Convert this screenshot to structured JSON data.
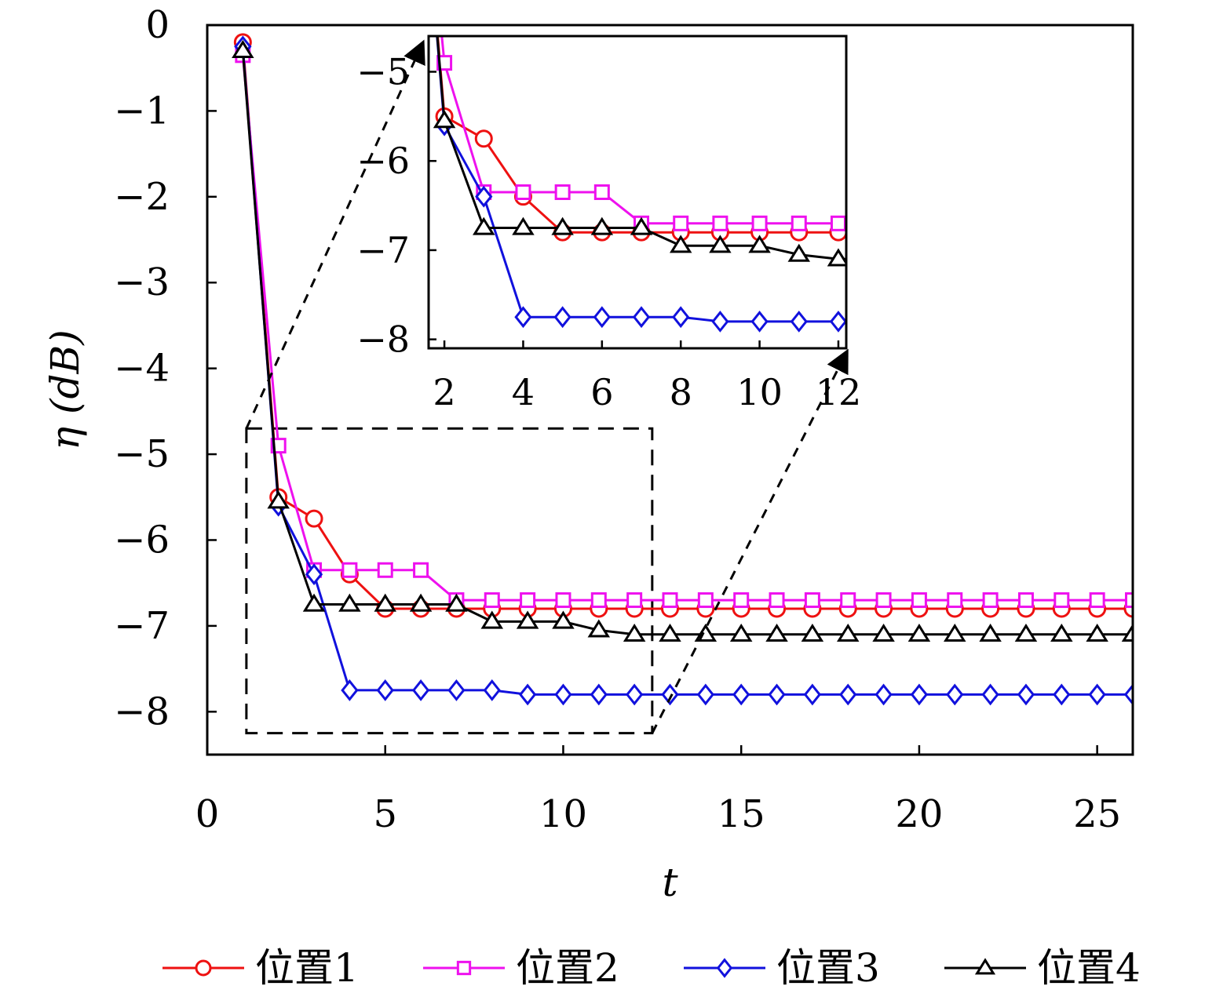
{
  "chart_data": {
    "type": "line",
    "xlabel": "t",
    "ylabel": "η (dB)",
    "xlim": [
      0,
      26
    ],
    "ylim": [
      -8.5,
      0
    ],
    "xticks": [
      0,
      5,
      10,
      15,
      20,
      25
    ],
    "yticks": [
      0,
      -1,
      -2,
      -3,
      -4,
      -5,
      -6,
      -7,
      -8
    ],
    "grid": false,
    "legend_position": "bottom",
    "series": [
      {
        "name": "位置1",
        "color": "#ee1111",
        "marker": "circle",
        "x": [
          1,
          2,
          3,
          4,
          5,
          6,
          7,
          8,
          9,
          10,
          11,
          12,
          13,
          14,
          15,
          16,
          17,
          18,
          19,
          20,
          21,
          22,
          23,
          24,
          25,
          26
        ],
        "y": [
          -0.2,
          -5.5,
          -5.75,
          -6.4,
          -6.8,
          -6.8,
          -6.8,
          -6.8,
          -6.8,
          -6.8,
          -6.8,
          -6.8,
          -6.8,
          -6.8,
          -6.8,
          -6.8,
          -6.8,
          -6.8,
          -6.8,
          -6.8,
          -6.8,
          -6.8,
          -6.8,
          -6.8,
          -6.8,
          -6.8
        ]
      },
      {
        "name": "位置2",
        "color": "#ee11ee",
        "marker": "square",
        "x": [
          1,
          2,
          3,
          4,
          5,
          6,
          7,
          8,
          9,
          10,
          11,
          12,
          13,
          14,
          15,
          16,
          17,
          18,
          19,
          20,
          21,
          22,
          23,
          24,
          25,
          26
        ],
        "y": [
          -0.35,
          -4.9,
          -6.35,
          -6.35,
          -6.35,
          -6.35,
          -6.7,
          -6.7,
          -6.7,
          -6.7,
          -6.7,
          -6.7,
          -6.7,
          -6.7,
          -6.7,
          -6.7,
          -6.7,
          -6.7,
          -6.7,
          -6.7,
          -6.7,
          -6.7,
          -6.7,
          -6.7,
          -6.7,
          -6.7
        ]
      },
      {
        "name": "位置3",
        "color": "#1111dd",
        "marker": "diamond",
        "x": [
          1,
          2,
          3,
          4,
          5,
          6,
          7,
          8,
          9,
          10,
          11,
          12,
          13,
          14,
          15,
          16,
          17,
          18,
          19,
          20,
          21,
          22,
          23,
          24,
          25,
          26
        ],
        "y": [
          -0.25,
          -5.6,
          -6.4,
          -7.75,
          -7.75,
          -7.75,
          -7.75,
          -7.75,
          -7.8,
          -7.8,
          -7.8,
          -7.8,
          -7.8,
          -7.8,
          -7.8,
          -7.8,
          -7.8,
          -7.8,
          -7.8,
          -7.8,
          -7.8,
          -7.8,
          -7.8,
          -7.8,
          -7.8,
          -7.8
        ]
      },
      {
        "name": "位置4",
        "color": "#000000",
        "marker": "triangle",
        "x": [
          1,
          2,
          3,
          4,
          5,
          6,
          7,
          8,
          9,
          10,
          11,
          12,
          13,
          14,
          15,
          16,
          17,
          18,
          19,
          20,
          21,
          22,
          23,
          24,
          25,
          26
        ],
        "y": [
          -0.3,
          -5.55,
          -6.75,
          -6.75,
          -6.75,
          -6.75,
          -6.75,
          -6.95,
          -6.95,
          -6.95,
          -7.05,
          -7.1,
          -7.1,
          -7.1,
          -7.1,
          -7.1,
          -7.1,
          -7.1,
          -7.1,
          -7.1,
          -7.1,
          -7.1,
          -7.1,
          -7.1,
          -7.1,
          -7.1
        ]
      }
    ],
    "inset": {
      "xlim": [
        1.6,
        12.2
      ],
      "ylim": [
        -8.1,
        -4.6
      ],
      "xticks": [
        2,
        4,
        6,
        8,
        10,
        12
      ],
      "yticks": [
        -5,
        -6,
        -7,
        -8
      ],
      "zoom_region": {
        "x": [
          1.1,
          12.5
        ],
        "y": [
          -8.25,
          -4.7
        ]
      }
    }
  }
}
